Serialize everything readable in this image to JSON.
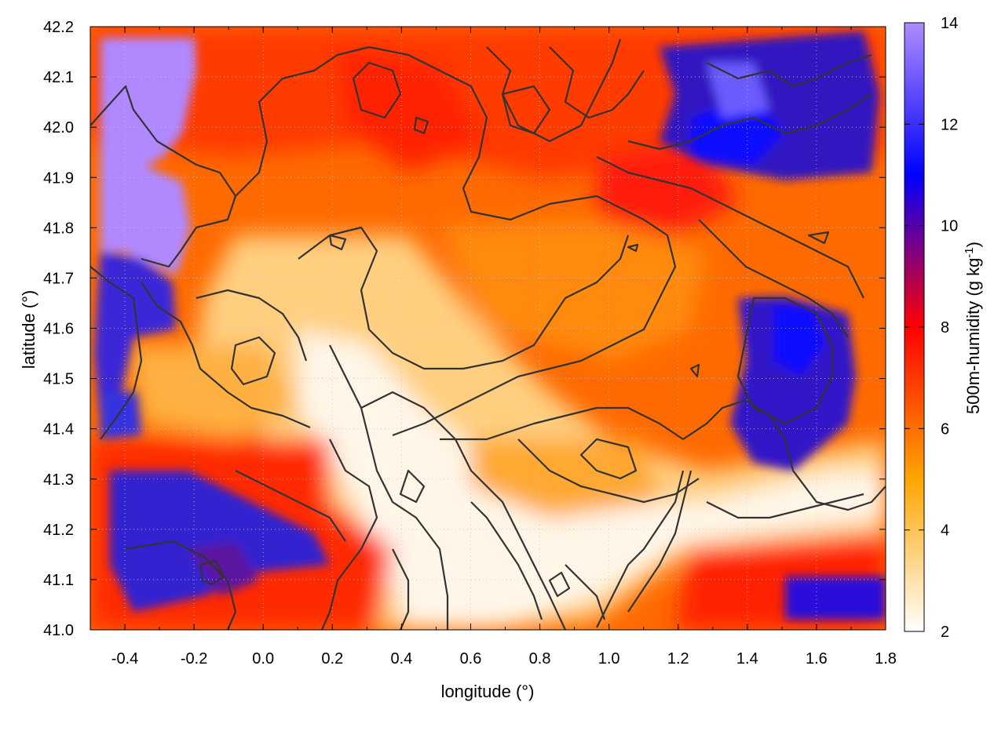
{
  "chart_data": {
    "type": "heatmap",
    "title": "",
    "xlabel": "longitude (°)",
    "ylabel": "latitude (°)",
    "colorbar_label": "500m-humidity (g kg",
    "colorbar_label_sup": "-1",
    "colorbar_label_end": ")",
    "xlim": [
      -0.5,
      1.8
    ],
    "ylim": [
      41.0,
      42.2
    ],
    "clim": [
      2,
      14
    ],
    "x_ticks": [
      "-0.4",
      "-0.2",
      "0.0",
      "0.2",
      "0.4",
      "0.6",
      "0.8",
      "1.0",
      "1.2",
      "1.4",
      "1.6",
      "1.8"
    ],
    "x_tick_values": [
      -0.4,
      -0.2,
      0.0,
      0.2,
      0.4,
      0.6,
      0.8,
      1.0,
      1.2,
      1.4,
      1.6,
      1.8
    ],
    "y_ticks": [
      "41.0",
      "41.1",
      "41.2",
      "41.3",
      "41.4",
      "41.5",
      "41.6",
      "41.7",
      "41.8",
      "41.9",
      "42.0",
      "42.1",
      "42.2"
    ],
    "y_tick_values": [
      41.0,
      41.1,
      41.2,
      41.3,
      41.4,
      41.5,
      41.6,
      41.7,
      41.8,
      41.9,
      42.0,
      42.1,
      42.2
    ],
    "colorbar_ticks": [
      "2",
      "4",
      "6",
      "8",
      "10",
      "12",
      "14"
    ],
    "colorbar_tick_values": [
      2,
      4,
      6,
      8,
      10,
      12,
      14
    ],
    "colormap": [
      "#ffffff",
      "#ffa500",
      "#ff0000",
      "#0000ff",
      "#b08cff"
    ],
    "grid": true,
    "contours": "terrain elevation lines (dark gray)",
    "humidity_regions": [
      {
        "lon": -0.4,
        "lat": 41.95,
        "value": 13.5
      },
      {
        "lon": -0.4,
        "lat": 41.5,
        "value": 11.5
      },
      {
        "lon": -0.3,
        "lat": 41.15,
        "value": 10.0
      },
      {
        "lon": 0.05,
        "lat": 41.2,
        "value": 10.5
      },
      {
        "lon": 1.4,
        "lat": 41.98,
        "value": 11.5
      },
      {
        "lon": 1.55,
        "lat": 41.55,
        "value": 11.0
      },
      {
        "lon": 1.6,
        "lat": 41.05,
        "value": 10.5
      },
      {
        "lon": 0.6,
        "lat": 41.3,
        "value": 2.5
      },
      {
        "lon": 0.35,
        "lat": 41.55,
        "value": 3.0
      },
      {
        "lon": 1.4,
        "lat": 41.25,
        "value": 3.0
      },
      {
        "lon": 0.9,
        "lat": 41.1,
        "value": 2.5
      },
      {
        "lon": 0.2,
        "lat": 41.75,
        "value": 5.0
      },
      {
        "lon": 1.0,
        "lat": 41.85,
        "value": 7.5
      }
    ]
  }
}
